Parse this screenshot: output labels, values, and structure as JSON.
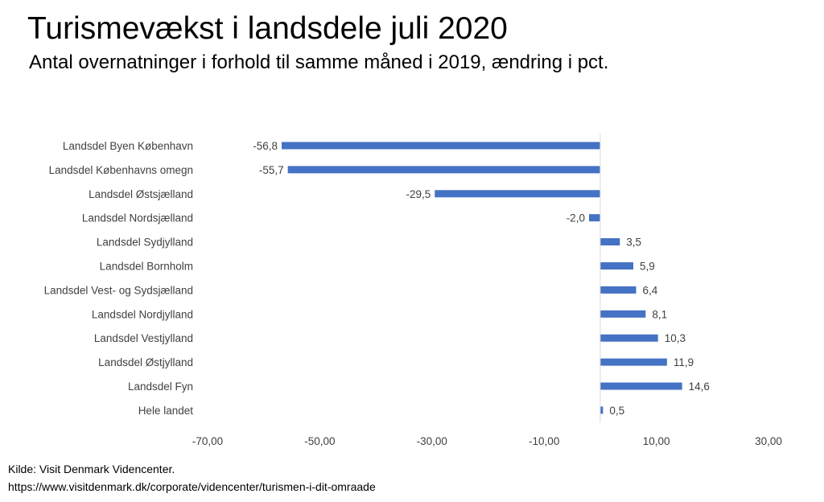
{
  "title": "Turismevækst i landsdele juli 2020",
  "subtitle": "Antal overnatninger i forhold til samme måned i 2019, ændring i pct.",
  "source": {
    "line1": "Kilde: Visit Denmark Videncenter.",
    "line2": "https://www.visitdenmark.dk/corporate/videncenter/turismen-i-dit-omraade"
  },
  "colors": {
    "bar": "#4472C4",
    "axis": "#D9D9D9",
    "text": "#404040"
  },
  "chart_data": {
    "type": "bar",
    "orientation": "horizontal",
    "title": "Turismevækst i landsdele juli 2020",
    "categories": [
      "Landsdel Byen København",
      "Landsdel Københavns omegn",
      "Landsdel Østsjælland",
      "Landsdel Nordsjælland",
      "Landsdel Sydjylland",
      "Landsdel Bornholm",
      "Landsdel Vest- og Sydsjælland",
      "Landsdel Nordjylland",
      "Landsdel Vestjylland",
      "Landsdel Østjylland",
      "Landsdel Fyn",
      "Hele landet"
    ],
    "values": [
      -56.8,
      -55.7,
      -29.5,
      -2.0,
      3.5,
      5.9,
      6.4,
      8.1,
      10.3,
      11.9,
      14.6,
      0.5
    ],
    "value_labels": [
      "-56,8",
      "-55,7",
      "-29,5",
      "-2,0",
      "3,5",
      "5,9",
      "6,4",
      "8,1",
      "10,3",
      "11,9",
      "14,6",
      "0,5"
    ],
    "xlim": [
      -70,
      30
    ],
    "xticks": [
      -70,
      -50,
      -30,
      -10,
      10,
      30
    ],
    "xtick_labels": [
      "-70,00",
      "-50,00",
      "-30,00",
      "-10,00",
      "10,00",
      "30,00"
    ],
    "grid": false,
    "legend": "none"
  }
}
